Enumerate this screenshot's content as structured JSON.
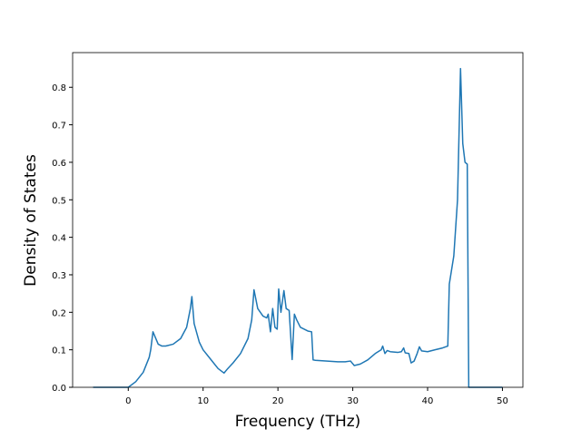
{
  "chart_data": {
    "type": "line",
    "x_label": "Frequency (THz)",
    "y_label": "Density of States",
    "series": [
      {
        "color": "#1f77b4",
        "x": [
          -4.7,
          0,
          1,
          2,
          2.8,
          3,
          3.3,
          4,
          4.5,
          5,
          6,
          7,
          7.8,
          8.3,
          8.5,
          8.8,
          9.5,
          10,
          11,
          12,
          12.8,
          13.3,
          14,
          15,
          16,
          16.5,
          16.8,
          17.3,
          18,
          18.5,
          18.7,
          19,
          19.3,
          19.6,
          19.9,
          20.1,
          20.4,
          20.8,
          21.1,
          21.5,
          21.9,
          22.2,
          22.5,
          23,
          24,
          24.5,
          24.7,
          25,
          28,
          29,
          29.7,
          30.2,
          31,
          32,
          33,
          33.8,
          34,
          34.3,
          34.6,
          35,
          36,
          36.5,
          36.8,
          37,
          37.5,
          37.8,
          38.2,
          38.6,
          38.9,
          39.2,
          40,
          41,
          42,
          42.7,
          42.9,
          43.5,
          44,
          44.4,
          44.7,
          45,
          45.3,
          45.5,
          50
        ],
        "values": [
          0,
          0,
          0.015,
          0.04,
          0.08,
          0.1,
          0.148,
          0.115,
          0.11,
          0.11,
          0.115,
          0.13,
          0.16,
          0.21,
          0.242,
          0.17,
          0.12,
          0.1,
          0.075,
          0.05,
          0.038,
          0.05,
          0.065,
          0.09,
          0.13,
          0.18,
          0.26,
          0.21,
          0.19,
          0.185,
          0.195,
          0.148,
          0.21,
          0.16,
          0.155,
          0.262,
          0.2,
          0.258,
          0.21,
          0.205,
          0.074,
          0.195,
          0.18,
          0.16,
          0.15,
          0.148,
          0.073,
          0.072,
          0.068,
          0.068,
          0.07,
          0.058,
          0.062,
          0.073,
          0.09,
          0.1,
          0.11,
          0.09,
          0.098,
          0.095,
          0.093,
          0.095,
          0.105,
          0.092,
          0.09,
          0.065,
          0.07,
          0.09,
          0.108,
          0.097,
          0.095,
          0.1,
          0.105,
          0.11,
          0.275,
          0.35,
          0.5,
          0.85,
          0.65,
          0.6,
          0.595,
          0,
          0
        ]
      }
    ],
    "xlim": [
      -7.435,
      52.735
    ],
    "ylim": [
      0,
      0.8925
    ],
    "xticks": [
      0,
      10,
      20,
      30,
      40,
      50
    ],
    "yticks": [
      {
        "value": 0,
        "label": "0.0"
      },
      0.1,
      0.2,
      0.3,
      0.4,
      0.5,
      0.6,
      0.7,
      0.8
    ]
  }
}
